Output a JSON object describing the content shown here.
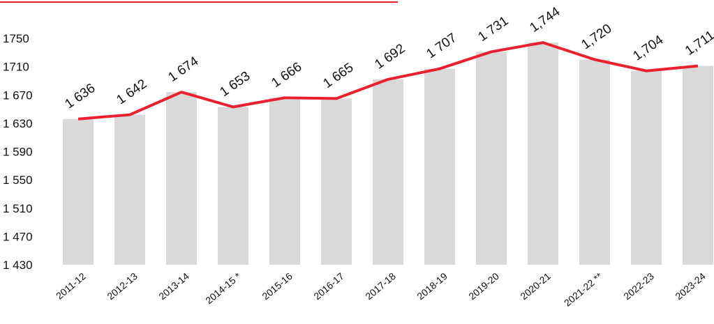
{
  "chart_data": {
    "type": "bar-line",
    "categories": [
      "2011-12",
      "2012-13",
      "2013-14",
      "2014-15 *",
      "2015-16",
      "2016-17",
      "2017-18",
      "2018-19",
      "2019-20",
      "2020-21",
      "2021-22 **",
      "2022-23",
      "2023-24"
    ],
    "values": [
      1636,
      1642,
      1674,
      1653,
      1666,
      1665,
      1692,
      1707,
      1731,
      1744,
      1720,
      1704,
      1711
    ],
    "value_labels": [
      "1 636",
      "1 642",
      "1 674",
      "1 653",
      "1 666",
      "1 665",
      "1 692",
      "1 707",
      "1 731",
      "1,744",
      "1,720",
      "1,704",
      "1,711"
    ],
    "bar_color": "#d9d9d9",
    "line_color": "#e8202f",
    "ylim": [
      1430,
      1750
    ],
    "yticks": [
      {
        "value": 1430,
        "label": "1 430"
      },
      {
        "value": 1470,
        "label": "1 470"
      },
      {
        "value": 1510,
        "label": "1 510"
      },
      {
        "value": 1550,
        "label": "1 550"
      },
      {
        "value": 1590,
        "label": "1 590"
      },
      {
        "value": 1630,
        "label": "1 630"
      },
      {
        "value": 1670,
        "label": "1 670"
      },
      1710,
      1750
    ]
  }
}
